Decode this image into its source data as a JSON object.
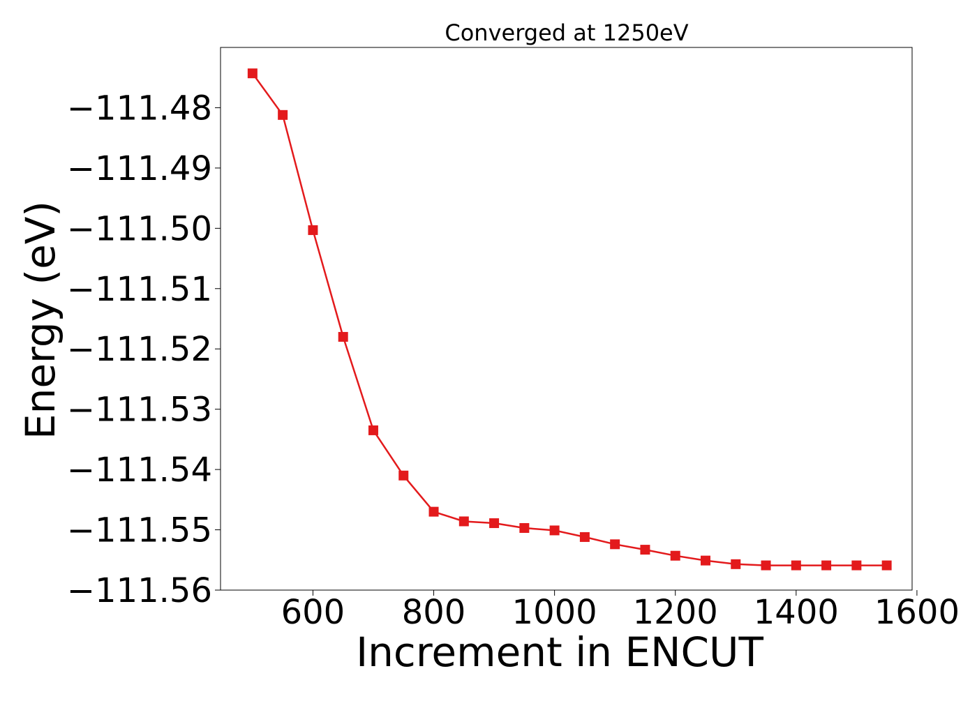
{
  "chart_data": {
    "type": "line",
    "title": "Converged at 1250eV",
    "xlabel": "Increment in ENCUT",
    "ylabel": "Energy (eV)",
    "xlim": [
      447,
      1592
    ],
    "ylim": [
      -111.56,
      -111.47
    ],
    "x_ticks": [
      600,
      800,
      1000,
      1200,
      1400,
      1600
    ],
    "x_tick_labels": [
      "600",
      "800",
      "1000",
      "1200",
      "1400",
      "1600"
    ],
    "y_ticks": [
      -111.48,
      -111.49,
      -111.5,
      -111.51,
      -111.52,
      -111.53,
      -111.54,
      -111.55,
      -111.56
    ],
    "y_tick_labels": [
      "−111.48",
      "−111.49",
      "−111.50",
      "−111.51",
      "−111.52",
      "−111.53",
      "−111.54",
      "−111.55",
      "−111.56"
    ],
    "grid": false,
    "marker": "square",
    "series": [
      {
        "color": "#e31a1c",
        "x": [
          500,
          550,
          600,
          650,
          700,
          750,
          800,
          850,
          900,
          950,
          1000,
          1050,
          1100,
          1150,
          1200,
          1250,
          1300,
          1350,
          1400,
          1450,
          1500,
          1550
        ],
        "y": [
          -111.4743,
          -111.4812,
          -111.5003,
          -111.518,
          -111.5335,
          -111.541,
          -111.547,
          -111.5486,
          -111.5489,
          -111.5497,
          -111.5501,
          -111.5512,
          -111.5524,
          -111.5533,
          -111.5543,
          -111.5551,
          -111.5557,
          -111.5559,
          -111.5559,
          -111.5559,
          -111.5559,
          -111.5559
        ]
      }
    ]
  }
}
